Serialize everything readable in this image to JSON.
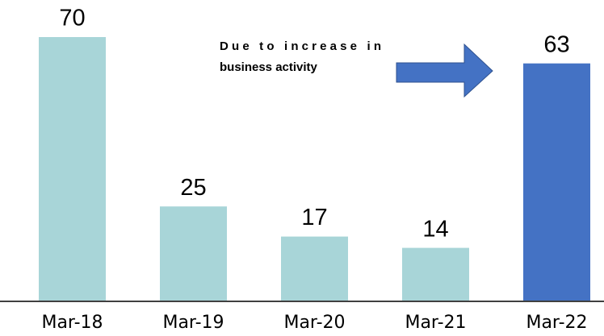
{
  "chart_data": {
    "type": "bar",
    "categories": [
      "Mar-18",
      "Mar-19",
      "Mar-20",
      "Mar-21",
      "Mar-22"
    ],
    "values": [
      70,
      25,
      17,
      14,
      63
    ],
    "colors": [
      "#a8d5d8",
      "#a8d5d8",
      "#a8d5d8",
      "#a8d5d8",
      "#4472c4"
    ],
    "annotation": [
      "Due to increase in",
      "business activity"
    ],
    "arrow_color": "#4472c4"
  }
}
